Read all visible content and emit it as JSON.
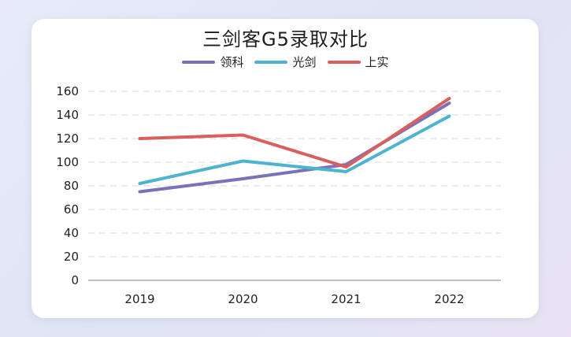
{
  "chart_data": {
    "type": "line",
    "title": "三剑客G5录取对比",
    "xlabel": "",
    "ylabel": "",
    "categories": [
      "2019",
      "2020",
      "2021",
      "2022"
    ],
    "ylim": [
      0,
      160
    ],
    "yticks": [
      0,
      20,
      40,
      60,
      80,
      100,
      120,
      140,
      160
    ],
    "grid": true,
    "legend_position": "top-center",
    "series": [
      {
        "name": "领科",
        "color": "#7a72b8",
        "values": [
          75,
          86,
          98,
          150
        ]
      },
      {
        "name": "光剑",
        "color": "#4fb3cf",
        "values": [
          82,
          101,
          92,
          139
        ]
      },
      {
        "name": "上实",
        "color": "#d95f5f",
        "values": [
          120,
          123,
          96,
          154
        ]
      }
    ]
  }
}
